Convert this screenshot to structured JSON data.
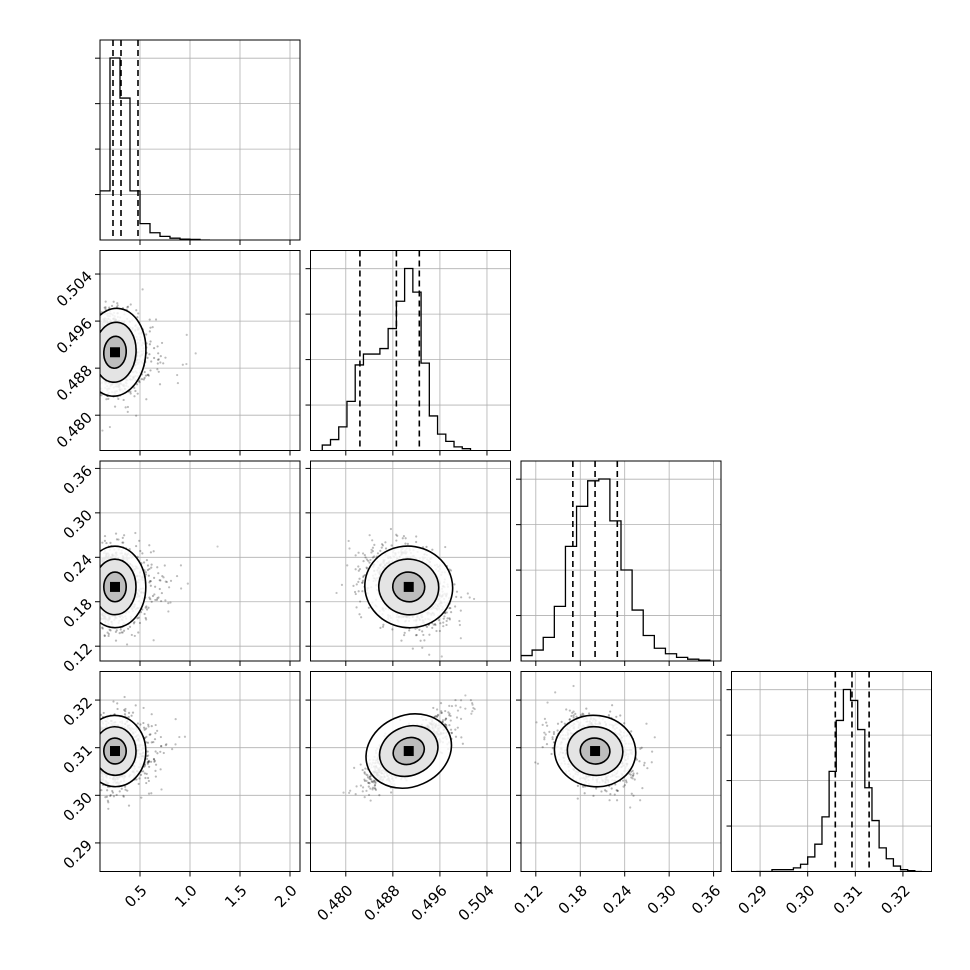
{
  "chart_data": {
    "type": "corner",
    "title": "",
    "grid": true,
    "parameters": [
      {
        "range": [
          0.1,
          2.1
        ],
        "ticks": [
          0.5,
          1.0,
          1.5,
          2.0
        ],
        "tick_labels": [
          "0.5",
          "1.0",
          "1.5",
          "2.0"
        ],
        "median": 0.31,
        "quantiles": [
          0.23,
          0.31,
          0.48
        ],
        "hist_bin_edges": [
          0.1,
          0.2,
          0.3,
          0.4,
          0.5,
          0.6,
          0.7,
          0.8,
          0.9,
          1.0,
          1.1,
          1.2
        ],
        "hist_counts": [
          0.27,
          1.0,
          0.78,
          0.27,
          0.09,
          0.04,
          0.02,
          0.01,
          0.005,
          0.003,
          0.0
        ],
        "mode_2d": 0.25,
        "spread_2d": 0.12
      },
      {
        "range": [
          0.474,
          0.508
        ],
        "ticks": [
          0.48,
          0.488,
          0.496,
          0.504
        ],
        "tick_labels": [
          "0.480",
          "0.488",
          "0.496",
          "0.504"
        ],
        "median": 0.4886,
        "quantiles": [
          0.4824,
          0.4886,
          0.4925
        ],
        "hist_bin_edges": [
          0.476,
          0.4774,
          0.4788,
          0.4802,
          0.4816,
          0.483,
          0.4844,
          0.4858,
          0.4872,
          0.4886,
          0.49,
          0.4914,
          0.4928,
          0.4942,
          0.4956,
          0.497,
          0.4984,
          0.4998,
          0.5012
        ],
        "hist_counts": [
          0.03,
          0.06,
          0.13,
          0.27,
          0.47,
          0.53,
          0.53,
          0.56,
          0.67,
          0.82,
          1.0,
          0.87,
          0.48,
          0.19,
          0.09,
          0.05,
          0.02,
          0.01
        ],
        "mode_2d": 0.4907,
        "spread_2d": 0.0034
      },
      {
        "range": [
          0.1,
          0.37
        ],
        "ticks": [
          0.12,
          0.18,
          0.24,
          0.3,
          0.36
        ],
        "tick_labels": [
          "0.12",
          "0.18",
          "0.24",
          "0.30",
          "0.36"
        ],
        "median": 0.2,
        "quantiles": [
          0.17,
          0.2,
          0.23
        ],
        "hist_bin_edges": [
          0.1,
          0.115,
          0.13,
          0.145,
          0.16,
          0.175,
          0.19,
          0.205,
          0.22,
          0.235,
          0.25,
          0.265,
          0.28,
          0.295,
          0.31,
          0.325,
          0.34,
          0.355
        ],
        "hist_counts": [
          0.03,
          0.06,
          0.13,
          0.3,
          0.63,
          0.85,
          0.99,
          1.0,
          0.77,
          0.5,
          0.28,
          0.14,
          0.07,
          0.04,
          0.02,
          0.01,
          0.005
        ],
        "mode_2d": 0.2,
        "spread_2d": 0.025
      },
      {
        "range": [
          0.284,
          0.326
        ],
        "ticks": [
          0.29,
          0.3,
          0.31,
          0.32
        ],
        "tick_labels": [
          "0.29",
          "0.30",
          "0.31",
          "0.32"
        ],
        "median": 0.3093,
        "quantiles": [
          0.3058,
          0.3093,
          0.3129
        ],
        "hist_bin_edges": [
          0.285,
          0.2865,
          0.288,
          0.2895,
          0.291,
          0.2925,
          0.294,
          0.2955,
          0.297,
          0.2985,
          0.3,
          0.3015,
          0.303,
          0.3045,
          0.306,
          0.3075,
          0.309,
          0.3105,
          0.312,
          0.3135,
          0.315,
          0.3165,
          0.318,
          0.3195,
          0.321,
          0.3225,
          0.324
        ],
        "hist_counts": [
          0.0,
          0.0,
          0.0,
          0.0,
          0.0,
          0.01,
          0.01,
          0.01,
          0.02,
          0.04,
          0.08,
          0.15,
          0.3,
          0.55,
          0.83,
          1.0,
          0.94,
          0.78,
          0.46,
          0.28,
          0.13,
          0.07,
          0.03,
          0.01,
          0.005,
          0.0
        ],
        "mode_2d": 0.3093,
        "spread_2d": 0.0034
      }
    ],
    "correlations": [
      {
        "pair": [
          0,
          1
        ],
        "rho": -0.15
      },
      {
        "pair": [
          0,
          2
        ],
        "rho": 0.0
      },
      {
        "pair": [
          1,
          2
        ],
        "rho": -0.3
      },
      {
        "pair": [
          0,
          3
        ],
        "rho": 0.05
      },
      {
        "pair": [
          1,
          3
        ],
        "rho": 0.8
      },
      {
        "pair": [
          2,
          3
        ],
        "rho": -0.25
      }
    ]
  }
}
